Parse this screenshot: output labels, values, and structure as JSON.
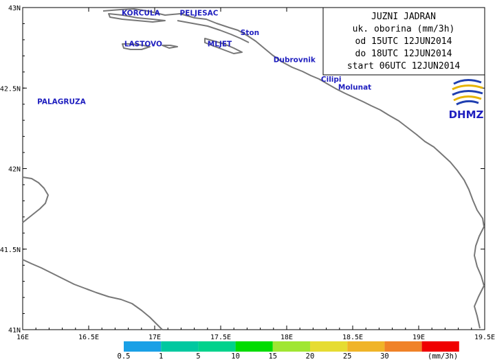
{
  "title_box": {
    "lines": [
      "JUZNI JADRAN",
      "uk. oborina (mm/3h)",
      "od 15UTC 12JUN2014",
      "do 18UTC 12JUN2014",
      "start 06UTC 12JUN2014"
    ]
  },
  "logo": {
    "text": "DHMZ",
    "icon": "dhmz-logo-icon"
  },
  "axes": {
    "lon_ticks": [
      "16E",
      "16.5E",
      "17E",
      "17.5E",
      "18E",
      "18.5E",
      "19E",
      "19.5E"
    ],
    "lat_ticks": [
      "43N",
      "42.5N",
      "42N",
      "41.5N",
      "41N"
    ],
    "lon_range": [
      16,
      19.5
    ],
    "lat_range": [
      41,
      43
    ]
  },
  "places": [
    {
      "name": "KORCULA",
      "lon": 16.75,
      "lat": 42.95
    },
    {
      "name": "PELJESAC",
      "lon": 17.19,
      "lat": 42.95
    },
    {
      "name": "Ston",
      "lon": 17.65,
      "lat": 42.83
    },
    {
      "name": "LASTOVO",
      "lon": 16.77,
      "lat": 42.76
    },
    {
      "name": "MLJET",
      "lon": 17.4,
      "lat": 42.76
    },
    {
      "name": "Dubrovnik",
      "lon": 17.9,
      "lat": 42.66
    },
    {
      "name": "Cilipi",
      "lon": 18.26,
      "lat": 42.54
    },
    {
      "name": "Molunat",
      "lon": 18.39,
      "lat": 42.49
    },
    {
      "name": "PALAGRUZA",
      "lon": 16.11,
      "lat": 42.4
    }
  ],
  "legend": {
    "unit": "(mm/3h)",
    "labels": [
      "0.5",
      "1",
      "5",
      "10",
      "15",
      "20",
      "25",
      "30"
    ],
    "colors": [
      "#1aa0e6",
      "#00c8a0",
      "#00d28c",
      "#00dc00",
      "#a0e632",
      "#e6dc32",
      "#f0b428",
      "#f08228",
      "#f00000"
    ]
  },
  "colors": {
    "coast": "#777777",
    "place_text": "#1f1fbf",
    "frame": "#000000"
  }
}
